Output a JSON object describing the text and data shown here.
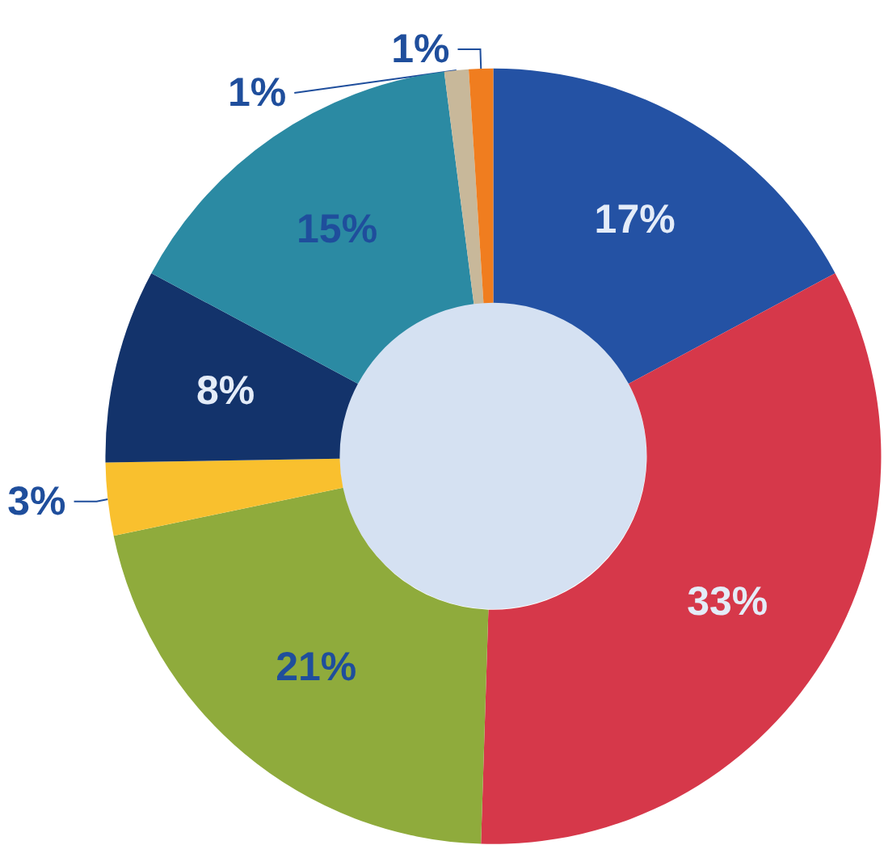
{
  "chart_data": {
    "type": "donut",
    "categories": [
      null,
      null,
      null,
      null,
      null,
      null,
      null,
      null
    ],
    "values": [
      17,
      33,
      21,
      3,
      8,
      15,
      1,
      1
    ],
    "colors": [
      "#2452a4",
      "#d6384a",
      "#8fab3c",
      "#f9c02e",
      "#13336b",
      "#2b8aa3",
      "#c8b89a",
      "#f07d1f"
    ],
    "value_labels": [
      "17%",
      "33%",
      "21%",
      "3%",
      "8%",
      "15%",
      "1%",
      "1%"
    ]
  }
}
